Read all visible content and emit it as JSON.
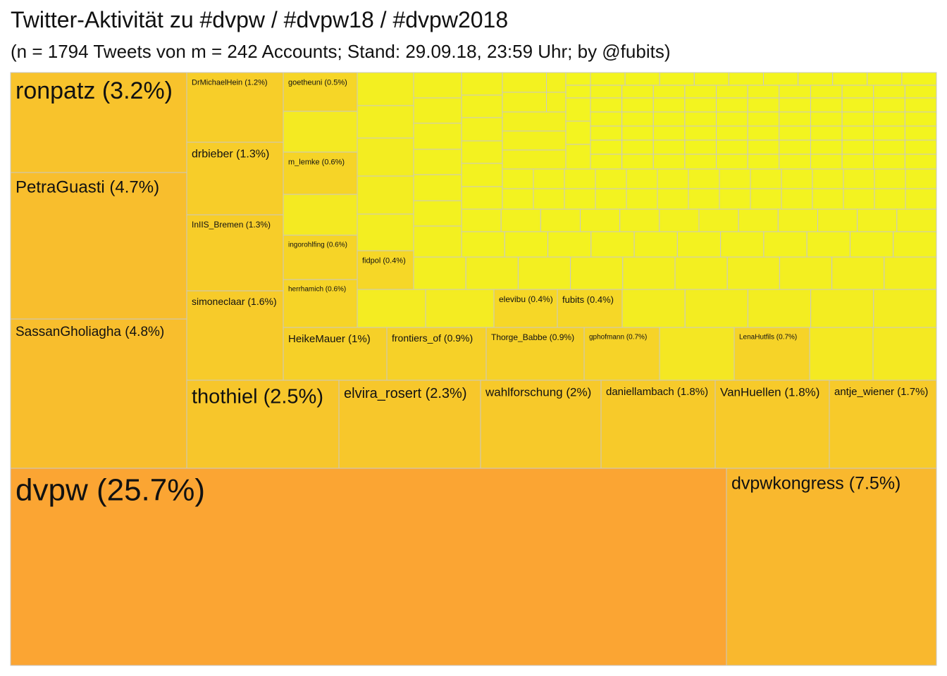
{
  "chart_data": {
    "type": "treemap",
    "title": "Twitter-Aktivität zu #dvpw / #dvpw18 / #dvpw2018",
    "subtitle": "(n = 1794 Tweets von m = 242 Accounts; Stand: 29.09.18, 23:59 Uhr; by @fubits)",
    "value_unit": "% of tweets",
    "color_scale": {
      "high": "#fba533",
      "low": "#f2fa1e"
    },
    "labeled_accounts": [
      {
        "name": "dvpw",
        "value": 25.7,
        "label": "dvpw (25.7%)"
      },
      {
        "name": "dvpwkongress",
        "value": 7.5,
        "label": "dvpwkongress (7.5%)"
      },
      {
        "name": "SassanGholiagha",
        "value": 4.8,
        "label": "SassanGholiagha (4.8%)"
      },
      {
        "name": "PetraGuasti",
        "value": 4.7,
        "label": "PetraGuasti (4.7%)"
      },
      {
        "name": "ronpatz",
        "value": 3.2,
        "label": "ronpatz (3.2%)"
      },
      {
        "name": "thothiel",
        "value": 2.5,
        "label": "thothiel (2.5%)"
      },
      {
        "name": "elvira_rosert",
        "value": 2.3,
        "label": "elvira_rosert (2.3%)"
      },
      {
        "name": "wahlforschung",
        "value": 2.0,
        "label": "wahlforschung (2%)"
      },
      {
        "name": "daniellambach",
        "value": 1.8,
        "label": "daniellambach (1.8%)"
      },
      {
        "name": "VanHuellen",
        "value": 1.8,
        "label": "VanHuellen (1.8%)"
      },
      {
        "name": "antje_wiener",
        "value": 1.7,
        "label": "antje_wiener (1.7%)"
      },
      {
        "name": "simoneclaar",
        "value": 1.6,
        "label": "simoneclaar (1.6%)"
      },
      {
        "name": "drbieber",
        "value": 1.3,
        "label": "drbieber (1.3%)"
      },
      {
        "name": "InIIS_Bremen",
        "value": 1.3,
        "label": "InIIS_Bremen (1.3%)"
      },
      {
        "name": "DrMichaelHein",
        "value": 1.2,
        "label": "DrMichaelHein (1.2%)"
      },
      {
        "name": "HeikeMauer",
        "value": 1.0,
        "label": "HeikeMauer (1%)"
      },
      {
        "name": "frontiers_of",
        "value": 0.9,
        "label": "frontiers_of (0.9%)"
      },
      {
        "name": "Thorge_Babbe",
        "value": 0.9,
        "label": "Thorge_Babbe (0.9%)"
      },
      {
        "name": "gphofmann",
        "value": 0.7,
        "label": "gphofmann (0.7%)"
      },
      {
        "name": "LenaHutfils",
        "value": 0.7,
        "label": "LenaHutfils (0.7%)"
      },
      {
        "name": "m_lemke",
        "value": 0.6,
        "label": "m_lemke (0.6%)"
      },
      {
        "name": "ingorohlfing",
        "value": 0.6,
        "label": "ingorohlfing (0.6%)"
      },
      {
        "name": "herrhamich",
        "value": 0.6,
        "label": "herrhamich (0.6%)"
      },
      {
        "name": "goetheuni",
        "value": 0.5,
        "label": "goetheuni (0.5%)"
      },
      {
        "name": "fidpol",
        "value": 0.4,
        "label": "fidpol (0.4%)"
      },
      {
        "name": "elevibu",
        "value": 0.4,
        "label": "elevibu (0.4%)"
      },
      {
        "name": "fubits",
        "value": 0.4,
        "label": "fubits (0.4%)"
      }
    ],
    "unlabeled_accounts_note": ""
  }
}
